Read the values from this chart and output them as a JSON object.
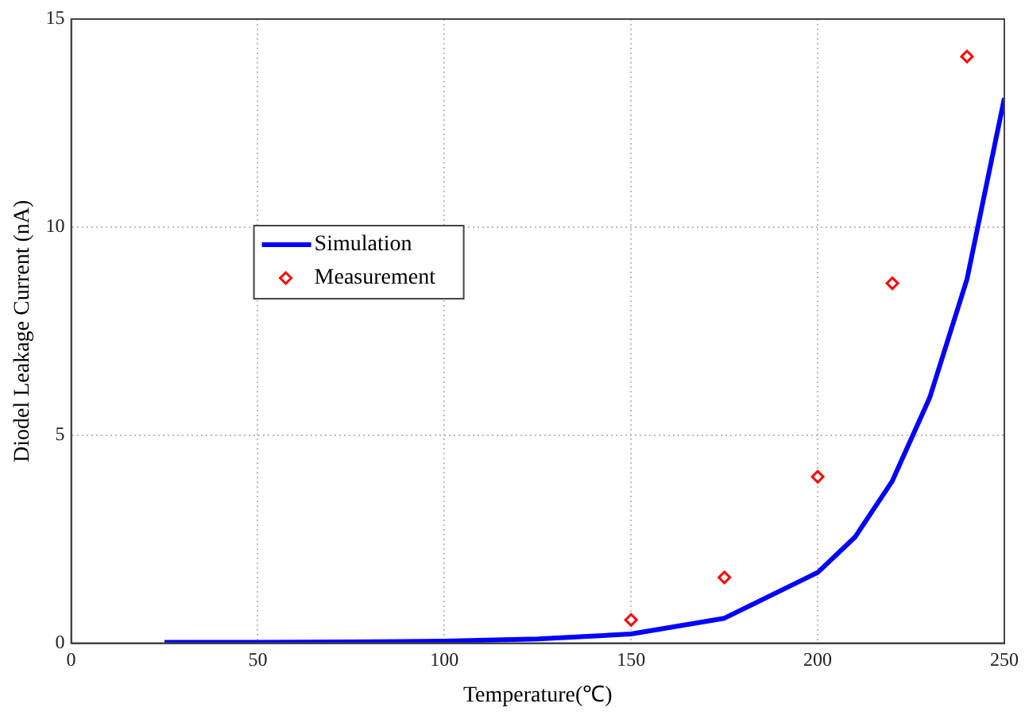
{
  "chart_data": {
    "type": "line",
    "xlabel": "Temperature(℃)",
    "ylabel": "Diodel Leakage Current (nA)",
    "xlim": [
      0,
      250
    ],
    "xticks": [
      0,
      50,
      100,
      150,
      200,
      250
    ],
    "ylim": [
      0,
      15
    ],
    "yticks": [
      0,
      5,
      10,
      15
    ],
    "grid": true,
    "legend": "top left",
    "series": [
      {
        "name": "Simulation",
        "color": "#0000ff",
        "marker": "none",
        "line_style": "solid",
        "x": [
          25,
          50,
          75,
          100,
          125,
          150,
          175,
          200,
          210,
          220,
          230,
          240,
          250
        ],
        "values": [
          0.02,
          0.02,
          0.03,
          0.05,
          0.1,
          0.22,
          0.6,
          1.7,
          2.55,
          3.9,
          5.9,
          8.75,
          13.1
        ]
      },
      {
        "name": "Measurement",
        "type": "scatter",
        "color": "#ff0000",
        "marker": "diamond",
        "x": [
          150,
          175,
          200,
          220,
          240
        ],
        "values": [
          0.56,
          1.58,
          4.0,
          8.65,
          14.1
        ]
      }
    ]
  }
}
